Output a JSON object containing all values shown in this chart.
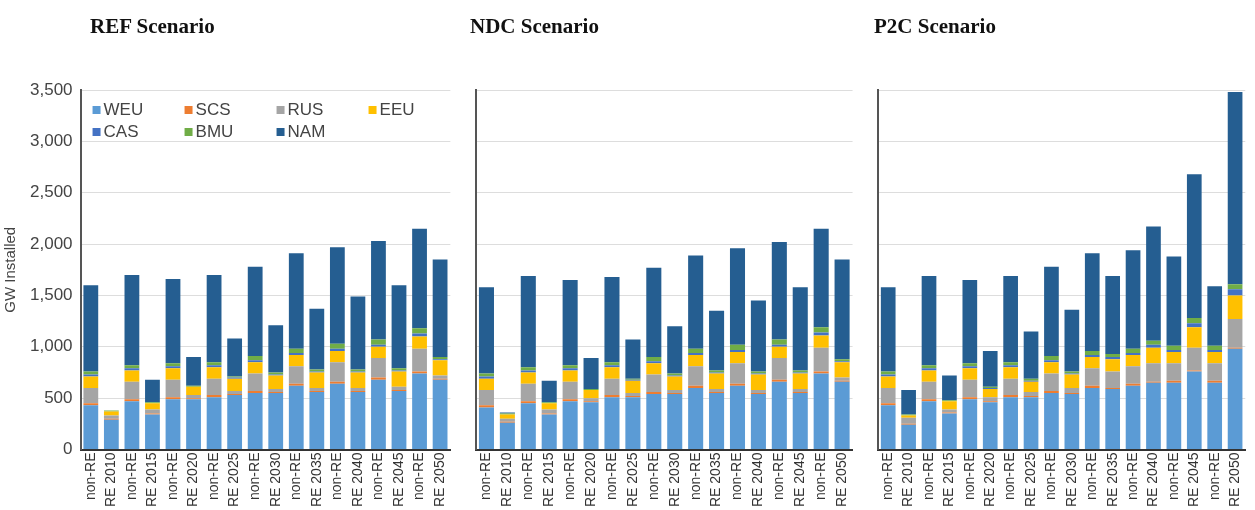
{
  "chart_data": [
    {
      "type": "bar",
      "title": "REF Scenario",
      "ylabel": "GW Installed",
      "stacked": true,
      "grid": "y",
      "legend": "top left",
      "categories": [
        "non-RE",
        "RE 2010",
        "non-RE",
        "RE 2015",
        "non-RE",
        "RE 2020",
        "non-RE",
        "RE 2025",
        "non-RE",
        "RE 2030",
        "non-RE",
        "RE 2035",
        "non-RE",
        "RE 2040",
        "non-RE",
        "RE 2045",
        "non-RE",
        "RE 2050"
      ],
      "ylim": [
        0,
        3500
      ],
      "yticks": [
        {
          "value": 0,
          "label": "0"
        },
        {
          "value": 500,
          "label": "500"
        },
        {
          "value": 1000,
          "label": "1,000"
        },
        {
          "value": 1500,
          "label": "1,500"
        },
        {
          "value": 2000,
          "label": "2,000"
        },
        {
          "value": 2500,
          "label": "2,500"
        },
        {
          "value": 3000,
          "label": "3,000"
        },
        {
          "value": 3500,
          "label": "3,500"
        }
      ],
      "series": [
        {
          "name": "WEU",
          "color": "#5b9bd5",
          "values": [
            430,
            290,
            470,
            340,
            490,
            490,
            510,
            530,
            550,
            550,
            620,
            560,
            640,
            560,
            680,
            570,
            740,
            680
          ]
        },
        {
          "name": "SCS",
          "color": "#ed7d31",
          "values": [
            20,
            10,
            20,
            10,
            20,
            10,
            20,
            10,
            20,
            10,
            20,
            10,
            20,
            10,
            20,
            10,
            20,
            10
          ]
        },
        {
          "name": "RUS",
          "color": "#a5a5a5",
          "values": [
            150,
            30,
            170,
            40,
            170,
            30,
            160,
            30,
            170,
            30,
            170,
            30,
            190,
            30,
            190,
            30,
            220,
            30
          ]
        },
        {
          "name": "EEU",
          "color": "#ffc000",
          "values": [
            110,
            40,
            110,
            60,
            110,
            80,
            110,
            120,
            110,
            130,
            110,
            150,
            110,
            150,
            110,
            150,
            120,
            150
          ]
        },
        {
          "name": "CAS",
          "color": "#4472c4",
          "values": [
            20,
            0,
            20,
            0,
            20,
            0,
            20,
            10,
            20,
            10,
            20,
            10,
            20,
            10,
            20,
            10,
            30,
            10
          ]
        },
        {
          "name": "BMU",
          "color": "#70ad47",
          "values": [
            30,
            10,
            30,
            10,
            30,
            10,
            30,
            10,
            40,
            20,
            40,
            20,
            50,
            20,
            50,
            20,
            50,
            20
          ]
        },
        {
          "name": "NAM",
          "color": "#255e91",
          "values": [
            840,
            0,
            880,
            220,
            820,
            280,
            850,
            370,
            870,
            460,
            930,
            590,
            940,
            710,
            960,
            810,
            970,
            950
          ]
        }
      ]
    },
    {
      "type": "bar",
      "title": "NDC Scenario",
      "stacked": true,
      "grid": "y",
      "tick_labels": "x",
      "categories": [
        "non-RE",
        "RE 2010",
        "non-RE",
        "RE 2015",
        "non-RE",
        "RE 2020",
        "non-RE",
        "RE 2025",
        "non-RE",
        "RE 2030",
        "non-RE",
        "RE 2035",
        "non-RE",
        "RE 2040",
        "non-RE",
        "RE 2045",
        "non-RE",
        "RE 2050"
      ],
      "ylim": [
        0,
        3500
      ],
      "yticks": [
        0,
        500,
        1000,
        1500,
        2000,
        2500,
        3000,
        3500
      ],
      "series": [
        {
          "color": "#5b9bd5",
          "values": [
            410,
            260,
            450,
            340,
            470,
            460,
            510,
            510,
            540,
            540,
            600,
            550,
            620,
            540,
            660,
            550,
            740,
            660
          ]
        },
        {
          "color": "#ed7d31",
          "values": [
            20,
            10,
            20,
            10,
            20,
            10,
            20,
            10,
            20,
            10,
            20,
            10,
            20,
            10,
            20,
            10,
            20,
            10
          ]
        },
        {
          "color": "#a5a5a5",
          "values": [
            150,
            30,
            170,
            40,
            170,
            30,
            160,
            30,
            170,
            30,
            190,
            30,
            200,
            30,
            210,
            30,
            230,
            30
          ]
        },
        {
          "color": "#ffc000",
          "values": [
            110,
            40,
            110,
            60,
            110,
            80,
            110,
            120,
            110,
            130,
            110,
            150,
            110,
            150,
            110,
            150,
            120,
            150
          ]
        },
        {
          "color": "#4472c4",
          "values": [
            20,
            0,
            20,
            0,
            20,
            0,
            20,
            10,
            20,
            10,
            20,
            10,
            20,
            10,
            20,
            10,
            30,
            10
          ]
        },
        {
          "color": "#70ad47",
          "values": [
            30,
            10,
            30,
            10,
            30,
            10,
            30,
            10,
            40,
            20,
            40,
            20,
            50,
            20,
            50,
            20,
            50,
            20
          ]
        },
        {
          "color": "#255e91",
          "values": [
            840,
            10,
            890,
            210,
            830,
            300,
            830,
            380,
            870,
            460,
            910,
            580,
            940,
            690,
            950,
            810,
            960,
            970
          ]
        }
      ]
    },
    {
      "type": "bar",
      "title": "P2C Scenario",
      "stacked": true,
      "grid": "y",
      "tick_labels": "x",
      "categories": [
        "non-RE",
        "RE 2010",
        "non-RE",
        "RE 2015",
        "non-RE",
        "RE 2020",
        "non-RE",
        "RE 2025",
        "non-RE",
        "RE 2030",
        "non-RE",
        "RE 2035",
        "non-RE",
        "RE 2040",
        "non-RE",
        "RE 2045",
        "non-RE",
        "RE 2050"
      ],
      "ylim": [
        0,
        3500
      ],
      "yticks": [
        0,
        500,
        1000,
        1500,
        2000,
        2500,
        3000,
        3500
      ],
      "series": [
        {
          "color": "#5b9bd5",
          "values": [
            430,
            240,
            470,
            350,
            490,
            460,
            510,
            510,
            550,
            540,
            600,
            590,
            620,
            650,
            650,
            760,
            650,
            980
          ]
        },
        {
          "color": "#ed7d31",
          "values": [
            20,
            10,
            20,
            10,
            20,
            10,
            20,
            10,
            20,
            10,
            20,
            10,
            20,
            10,
            20,
            10,
            20,
            10
          ]
        },
        {
          "color": "#a5a5a5",
          "values": [
            150,
            60,
            170,
            30,
            170,
            40,
            160,
            40,
            170,
            50,
            170,
            160,
            170,
            180,
            170,
            220,
            170,
            280
          ]
        },
        {
          "color": "#ffc000",
          "values": [
            110,
            20,
            110,
            80,
            110,
            80,
            110,
            100,
            110,
            130,
            110,
            120,
            110,
            150,
            110,
            200,
            110,
            230
          ]
        },
        {
          "color": "#4472c4",
          "values": [
            20,
            0,
            20,
            0,
            20,
            10,
            20,
            10,
            20,
            10,
            20,
            20,
            20,
            30,
            20,
            40,
            20,
            60
          ]
        },
        {
          "color": "#70ad47",
          "values": [
            30,
            10,
            30,
            10,
            30,
            10,
            30,
            20,
            40,
            20,
            40,
            30,
            40,
            40,
            40,
            50,
            40,
            50
          ]
        },
        {
          "color": "#255e91",
          "values": [
            820,
            240,
            870,
            240,
            810,
            350,
            840,
            460,
            870,
            600,
            950,
            760,
            960,
            1110,
            870,
            1400,
            580,
            1870
          ]
        }
      ]
    }
  ]
}
